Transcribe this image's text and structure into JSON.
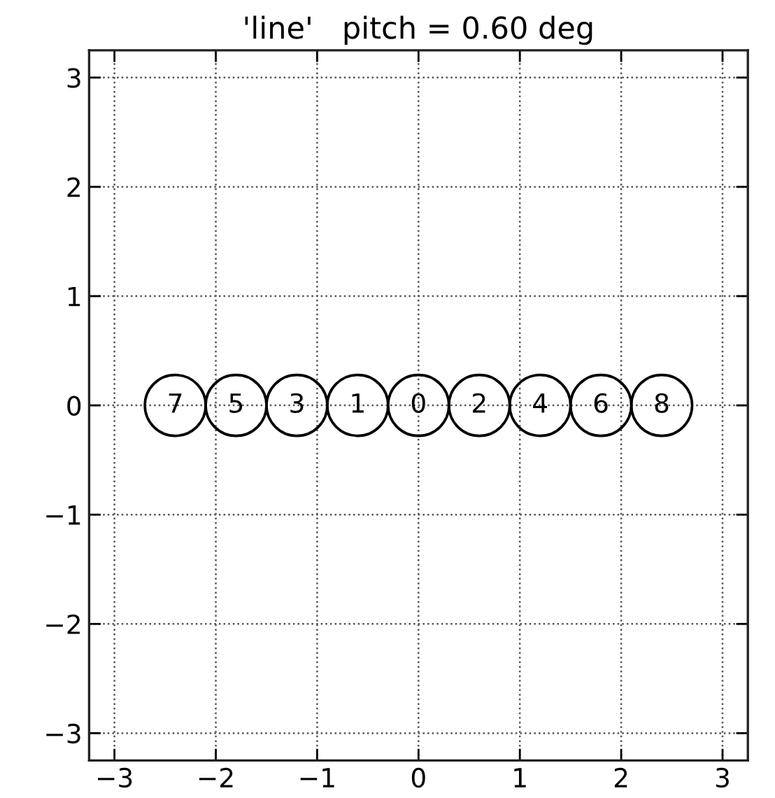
{
  "chart_data": {
    "type": "scatter",
    "title": "'line'   pitch = 0.60 deg",
    "x": [
      -2.4,
      -1.8,
      -1.2,
      -0.6,
      0,
      0.6,
      1.2,
      1.8,
      2.4
    ],
    "series": [
      {
        "color": "#000000",
        "values": [
          0,
          0,
          0,
          0,
          0,
          0,
          0,
          0,
          0
        ]
      }
    ],
    "marker": "circle",
    "annotations": [
      {
        "text": "7",
        "x": -2.4,
        "y": 0
      },
      {
        "text": "5",
        "x": -1.8,
        "y": 0
      },
      {
        "text": "3",
        "x": -1.2,
        "y": 0
      },
      {
        "text": "1",
        "x": -0.6,
        "y": 0
      },
      {
        "text": "0",
        "x": 0,
        "y": 0
      },
      {
        "text": "2",
        "x": 0.6,
        "y": 0
      },
      {
        "text": "4",
        "x": 1.2,
        "y": 0
      },
      {
        "text": "6",
        "x": 1.8,
        "y": 0
      },
      {
        "text": "8",
        "x": 2.4,
        "y": 0
      }
    ],
    "xlim": [
      -3.25,
      3.25
    ],
    "ylim": [
      -3.25,
      3.25
    ],
    "xticks": [
      -3,
      -2,
      -1,
      0,
      1,
      2,
      3
    ],
    "yticks": [
      -3,
      -2,
      -1,
      0,
      1,
      2,
      3
    ],
    "grid": true
  }
}
